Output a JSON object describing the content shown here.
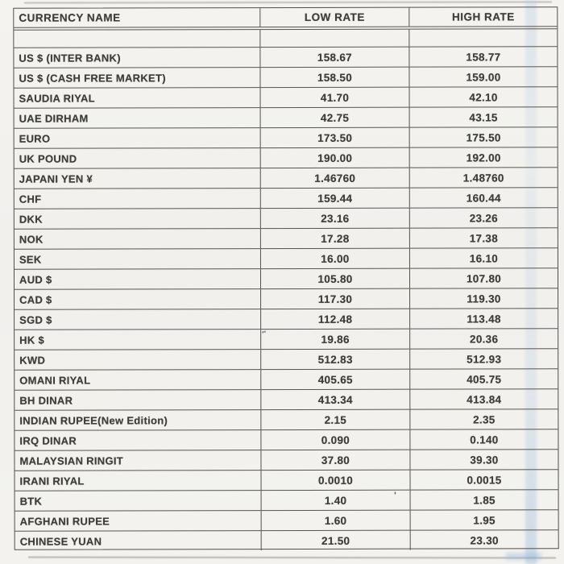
{
  "table": {
    "columns": [
      "CURRENCY NAME",
      "LOW RATE",
      "HIGH RATE"
    ],
    "rows": [
      {
        "name": "US $ (INTER BANK)",
        "low": "158.67",
        "high": "158.77"
      },
      {
        "name": "US $ (CASH FREE MARKET)",
        "low": "158.50",
        "high": "159.00"
      },
      {
        "name": "SAUDIA RIYAL",
        "low": "41.70",
        "high": "42.10"
      },
      {
        "name": "UAE DIRHAM",
        "low": "42.75",
        "high": "43.15"
      },
      {
        "name": "EURO",
        "low": "173.50",
        "high": "175.50"
      },
      {
        "name": "UK POUND",
        "low": "190.00",
        "high": "192.00"
      },
      {
        "name": "JAPANI YEN ¥",
        "low": "1.46760",
        "high": "1.48760"
      },
      {
        "name": "CHF",
        "low": "159.44",
        "high": "160.44"
      },
      {
        "name": "DKK",
        "low": "23.16",
        "high": "23.26"
      },
      {
        "name": "NOK",
        "low": "17.28",
        "high": "17.38"
      },
      {
        "name": "SEK",
        "low": "16.00",
        "high": "16.10"
      },
      {
        "name": "AUD $",
        "low": "105.80",
        "high": "107.80"
      },
      {
        "name": "CAD $",
        "low": "117.30",
        "high": "119.30"
      },
      {
        "name": "SGD $",
        "low": "112.48",
        "high": "113.48"
      },
      {
        "name": "HK $",
        "low": "19.86",
        "high": "20.36"
      },
      {
        "name": "KWD",
        "low": "512.83",
        "high": "512.93"
      },
      {
        "name": "OMANI RIYAL",
        "low": "405.65",
        "high": "405.75"
      },
      {
        "name": "BH DINAR",
        "low": "413.34",
        "high": "413.84"
      },
      {
        "name": "INDIAN RUPEE(New Edition)",
        "low": "2.15",
        "high": "2.35"
      },
      {
        "name": "IRQ DINAR",
        "low": "0.090",
        "high": "0.140"
      },
      {
        "name": "MALAYSIAN RINGIT",
        "low": "37.80",
        "high": "39.30"
      },
      {
        "name": "IRANI RIYAL",
        "low": "0.0010",
        "high": "0.0015"
      },
      {
        "name": "BTK",
        "low": "1.40",
        "high": "1.85"
      },
      {
        "name": "AFGHANI RUPEE",
        "low": "1.60",
        "high": "1.95"
      },
      {
        "name": "CHINESE YUAN",
        "low": "21.50",
        "high": "23.30"
      }
    ]
  },
  "artifacts": {
    "stray_mark": "'"
  },
  "colors": {
    "paper": "#f3f2ef",
    "ink": "#3e3d3b",
    "line": "#54524e",
    "artifact_blue": "#b7cde3"
  }
}
